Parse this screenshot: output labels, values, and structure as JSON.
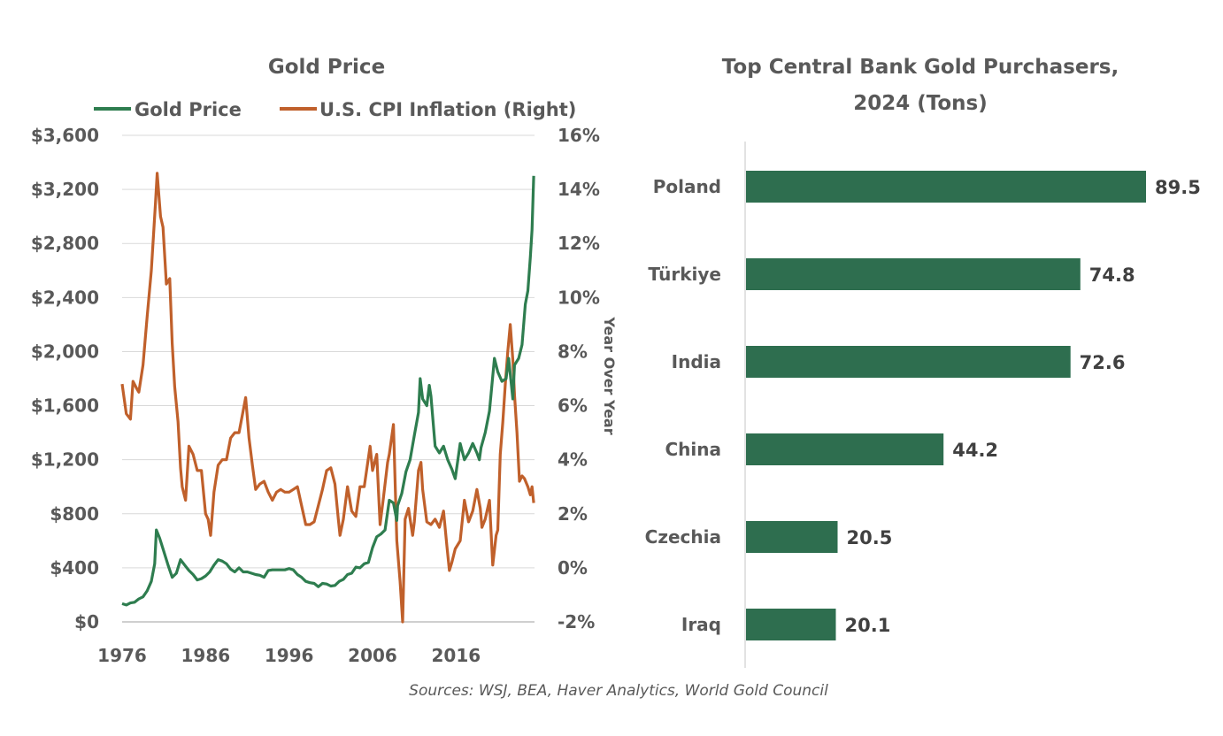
{
  "source_note": "Sources: WSJ, BEA, Haver Analytics, World Gold Council",
  "chart_data": [
    {
      "type": "line",
      "title": "Gold Price",
      "colors": {
        "gold": "#2e7d4f",
        "cpi": "#c0602b",
        "grid": "#d9d9d9"
      },
      "series": [
        {
          "name": "Gold Price",
          "axis": "left",
          "points": [
            [
              1976.0,
              135
            ],
            [
              1976.5,
              125
            ],
            [
              1977.0,
              140
            ],
            [
              1977.5,
              145
            ],
            [
              1978.0,
              170
            ],
            [
              1978.5,
              185
            ],
            [
              1979.0,
              230
            ],
            [
              1979.5,
              300
            ],
            [
              1979.9,
              430
            ],
            [
              1980.1,
              680
            ],
            [
              1980.5,
              620
            ],
            [
              1981.0,
              520
            ],
            [
              1981.5,
              420
            ],
            [
              1982.0,
              330
            ],
            [
              1982.5,
              360
            ],
            [
              1983.0,
              460
            ],
            [
              1983.5,
              420
            ],
            [
              1984.0,
              380
            ],
            [
              1984.5,
              350
            ],
            [
              1985.0,
              310
            ],
            [
              1985.5,
              320
            ],
            [
              1986.0,
              340
            ],
            [
              1986.5,
              370
            ],
            [
              1987.0,
              420
            ],
            [
              1987.5,
              460
            ],
            [
              1988.0,
              450
            ],
            [
              1988.5,
              430
            ],
            [
              1989.0,
              390
            ],
            [
              1989.5,
              370
            ],
            [
              1990.0,
              400
            ],
            [
              1990.5,
              370
            ],
            [
              1991.0,
              370
            ],
            [
              1991.5,
              360
            ],
            [
              1992.0,
              350
            ],
            [
              1992.5,
              345
            ],
            [
              1993.0,
              330
            ],
            [
              1993.5,
              380
            ],
            [
              1994.0,
              385
            ],
            [
              1994.5,
              385
            ],
            [
              1995.0,
              385
            ],
            [
              1995.5,
              385
            ],
            [
              1996.0,
              395
            ],
            [
              1996.5,
              385
            ],
            [
              1997.0,
              350
            ],
            [
              1997.5,
              330
            ],
            [
              1998.0,
              300
            ],
            [
              1998.5,
              290
            ],
            [
              1999.0,
              285
            ],
            [
              1999.5,
              260
            ],
            [
              2000.0,
              285
            ],
            [
              2000.5,
              280
            ],
            [
              2001.0,
              265
            ],
            [
              2001.5,
              270
            ],
            [
              2002.0,
              300
            ],
            [
              2002.5,
              315
            ],
            [
              2003.0,
              350
            ],
            [
              2003.5,
              360
            ],
            [
              2004.0,
              405
            ],
            [
              2004.5,
              400
            ],
            [
              2005.0,
              430
            ],
            [
              2005.5,
              440
            ],
            [
              2006.0,
              550
            ],
            [
              2006.5,
              630
            ],
            [
              2007.0,
              650
            ],
            [
              2007.5,
              680
            ],
            [
              2008.0,
              900
            ],
            [
              2008.5,
              880
            ],
            [
              2008.9,
              750
            ],
            [
              2009.0,
              860
            ],
            [
              2009.5,
              950
            ],
            [
              2010.0,
              1110
            ],
            [
              2010.5,
              1200
            ],
            [
              2011.0,
              1380
            ],
            [
              2011.5,
              1550
            ],
            [
              2011.7,
              1800
            ],
            [
              2012.0,
              1650
            ],
            [
              2012.5,
              1600
            ],
            [
              2012.8,
              1750
            ],
            [
              2013.0,
              1670
            ],
            [
              2013.5,
              1300
            ],
            [
              2014.0,
              1250
            ],
            [
              2014.5,
              1300
            ],
            [
              2015.0,
              1200
            ],
            [
              2015.5,
              1130
            ],
            [
              2015.9,
              1060
            ],
            [
              2016.5,
              1320
            ],
            [
              2017.0,
              1200
            ],
            [
              2017.5,
              1250
            ],
            [
              2018.0,
              1320
            ],
            [
              2018.5,
              1250
            ],
            [
              2018.8,
              1200
            ],
            [
              2019.0,
              1290
            ],
            [
              2019.5,
              1400
            ],
            [
              2020.0,
              1560
            ],
            [
              2020.6,
              1950
            ],
            [
              2021.0,
              1850
            ],
            [
              2021.5,
              1780
            ],
            [
              2022.0,
              1800
            ],
            [
              2022.3,
              1950
            ],
            [
              2022.8,
              1650
            ],
            [
              2023.0,
              1900
            ],
            [
              2023.5,
              1950
            ],
            [
              2023.9,
              2050
            ],
            [
              2024.3,
              2350
            ],
            [
              2024.6,
              2450
            ],
            [
              2024.9,
              2700
            ],
            [
              2025.1,
              2900
            ],
            [
              2025.3,
              3300
            ]
          ]
        },
        {
          "name": "U.S. CPI Inflation (Right)",
          "axis": "right",
          "points": [
            [
              1976.0,
              6.8
            ],
            [
              1976.5,
              5.7
            ],
            [
              1977.0,
              5.5
            ],
            [
              1977.3,
              6.9
            ],
            [
              1977.8,
              6.6
            ],
            [
              1978.0,
              6.5
            ],
            [
              1978.5,
              7.5
            ],
            [
              1979.0,
              9.3
            ],
            [
              1979.5,
              11.0
            ],
            [
              1980.0,
              13.5
            ],
            [
              1980.2,
              14.6
            ],
            [
              1980.6,
              13.0
            ],
            [
              1980.9,
              12.6
            ],
            [
              1981.3,
              10.5
            ],
            [
              1981.7,
              10.7
            ],
            [
              1982.0,
              8.3
            ],
            [
              1982.3,
              6.7
            ],
            [
              1982.7,
              5.4
            ],
            [
              1983.0,
              3.7
            ],
            [
              1983.2,
              3.0
            ],
            [
              1983.6,
              2.5
            ],
            [
              1984.0,
              4.5
            ],
            [
              1984.5,
              4.2
            ],
            [
              1985.0,
              3.6
            ],
            [
              1985.5,
              3.6
            ],
            [
              1986.0,
              2.0
            ],
            [
              1986.3,
              1.8
            ],
            [
              1986.6,
              1.2
            ],
            [
              1987.0,
              2.8
            ],
            [
              1987.5,
              3.8
            ],
            [
              1988.0,
              4.0
            ],
            [
              1988.5,
              4.0
            ],
            [
              1989.0,
              4.8
            ],
            [
              1989.5,
              5.0
            ],
            [
              1990.0,
              5.0
            ],
            [
              1990.8,
              6.3
            ],
            [
              1991.2,
              4.8
            ],
            [
              1991.6,
              3.8
            ],
            [
              1992.0,
              2.9
            ],
            [
              1992.5,
              3.1
            ],
            [
              1993.0,
              3.2
            ],
            [
              1993.5,
              2.8
            ],
            [
              1994.0,
              2.5
            ],
            [
              1994.5,
              2.8
            ],
            [
              1995.0,
              2.9
            ],
            [
              1995.5,
              2.8
            ],
            [
              1996.0,
              2.8
            ],
            [
              1996.5,
              2.9
            ],
            [
              1997.0,
              3.0
            ],
            [
              1997.5,
              2.3
            ],
            [
              1998.0,
              1.6
            ],
            [
              1998.5,
              1.6
            ],
            [
              1999.0,
              1.7
            ],
            [
              1999.5,
              2.3
            ],
            [
              2000.0,
              2.9
            ],
            [
              2000.5,
              3.6
            ],
            [
              2001.0,
              3.7
            ],
            [
              2001.5,
              3.1
            ],
            [
              2001.9,
              1.8
            ],
            [
              2002.1,
              1.2
            ],
            [
              2002.5,
              1.8
            ],
            [
              2003.0,
              3.0
            ],
            [
              2003.5,
              2.1
            ],
            [
              2004.0,
              1.9
            ],
            [
              2004.5,
              3.0
            ],
            [
              2005.0,
              3.0
            ],
            [
              2005.7,
              4.5
            ],
            [
              2006.0,
              3.6
            ],
            [
              2006.5,
              4.2
            ],
            [
              2006.9,
              1.6
            ],
            [
              2007.3,
              2.6
            ],
            [
              2007.8,
              3.9
            ],
            [
              2008.0,
              4.2
            ],
            [
              2008.5,
              5.3
            ],
            [
              2008.9,
              1.0
            ],
            [
              2009.3,
              -0.5
            ],
            [
              2009.6,
              -2.0
            ],
            [
              2009.9,
              1.8
            ],
            [
              2010.3,
              2.2
            ],
            [
              2010.8,
              1.2
            ],
            [
              2011.0,
              1.7
            ],
            [
              2011.5,
              3.6
            ],
            [
              2011.8,
              3.9
            ],
            [
              2012.0,
              2.9
            ],
            [
              2012.5,
              1.7
            ],
            [
              2013.0,
              1.6
            ],
            [
              2013.5,
              1.8
            ],
            [
              2014.0,
              1.5
            ],
            [
              2014.5,
              2.1
            ],
            [
              2014.9,
              0.8
            ],
            [
              2015.2,
              -0.1
            ],
            [
              2015.5,
              0.2
            ],
            [
              2015.9,
              0.7
            ],
            [
              2016.5,
              1.0
            ],
            [
              2017.0,
              2.5
            ],
            [
              2017.5,
              1.7
            ],
            [
              2018.0,
              2.1
            ],
            [
              2018.5,
              2.9
            ],
            [
              2018.9,
              2.2
            ],
            [
              2019.1,
              1.5
            ],
            [
              2019.5,
              1.8
            ],
            [
              2020.0,
              2.5
            ],
            [
              2020.4,
              0.1
            ],
            [
              2020.8,
              1.2
            ],
            [
              2021.0,
              1.4
            ],
            [
              2021.3,
              4.2
            ],
            [
              2021.6,
              5.4
            ],
            [
              2021.9,
              6.8
            ],
            [
              2022.2,
              8.0
            ],
            [
              2022.5,
              9.0
            ],
            [
              2022.8,
              7.7
            ],
            [
              2023.0,
              6.4
            ],
            [
              2023.3,
              5.0
            ],
            [
              2023.6,
              3.2
            ],
            [
              2023.9,
              3.4
            ],
            [
              2024.2,
              3.3
            ],
            [
              2024.6,
              3.0
            ],
            [
              2024.9,
              2.7
            ],
            [
              2025.1,
              3.0
            ],
            [
              2025.3,
              2.4
            ]
          ]
        }
      ],
      "xlim": [
        1976,
        2025.4
      ],
      "xticks": [
        1976,
        1986,
        1996,
        2006,
        2016
      ],
      "ylim": [
        0,
        3600
      ],
      "yticks": [
        "$0",
        "$400",
        "$800",
        "$1,200",
        "$1,600",
        "$2,000",
        "$2,400",
        "$2,800",
        "$3,200",
        "$3,600"
      ],
      "y2lim": [
        -2,
        16
      ],
      "y2ticks": [
        "-2%",
        "0%",
        "2%",
        "4%",
        "6%",
        "8%",
        "10%",
        "12%",
        "14%",
        "16%"
      ],
      "y2label": "Year Over Year",
      "grid": true,
      "legend": "top"
    },
    {
      "type": "bar",
      "orientation": "horizontal",
      "title": [
        "Top Central Bank Gold Purchasers,",
        "2024 (Tons)"
      ],
      "color": "#2e6e4f",
      "categories": [
        "Poland",
        "Türkiye",
        "India",
        "China",
        "Czechia",
        "Iraq"
      ],
      "values": [
        89.5,
        74.8,
        72.6,
        44.2,
        20.5,
        20.1
      ],
      "value_labels": [
        "89.5",
        "74.8",
        "72.6",
        "44.2",
        "20.5",
        "20.1"
      ],
      "xlim": [
        0,
        100
      ]
    }
  ]
}
